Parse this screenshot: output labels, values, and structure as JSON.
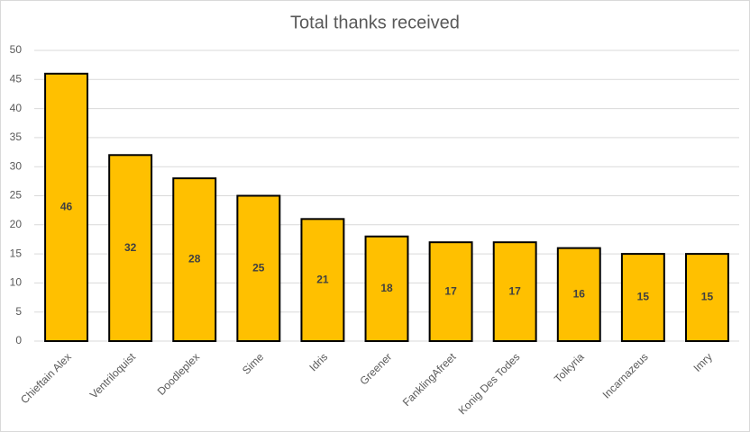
{
  "chart_data": {
    "type": "bar",
    "title": "Total thanks received",
    "categories": [
      "Chieftain Alex",
      "Ventriloquist",
      "Doodleplex",
      "Sime",
      "Idris",
      "Greener",
      "FanklingAfreet",
      "Konig Des Todes",
      "Tolkyria",
      "Incarnazeus",
      "Imry"
    ],
    "values": [
      46,
      32,
      28,
      25,
      21,
      18,
      17,
      17,
      16,
      15,
      15
    ],
    "color": "#ffc000",
    "ylim": [
      0,
      50
    ],
    "yticks": [
      0,
      5,
      10,
      15,
      20,
      25,
      30,
      35,
      40,
      45,
      50
    ],
    "grid": true
  }
}
